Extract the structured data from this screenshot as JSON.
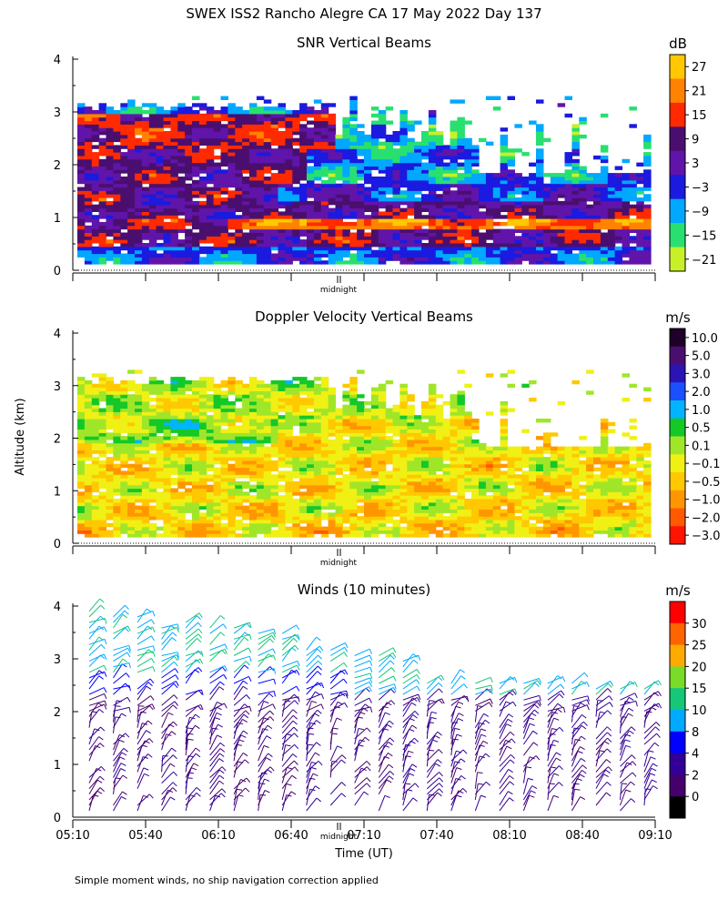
{
  "figure": {
    "title": "SWEX ISS2 Rancho Alegre CA  17 May 2022 Day 137",
    "ylabel": "Altitude (km)",
    "xlabel": "Time (UT)",
    "midnight_label": "midnight",
    "footnote": "Simple moment winds, no ship navigation correction applied"
  },
  "chart_data": [
    {
      "type": "heatmap",
      "title": "SNR Vertical Beams",
      "x": {
        "range": [
          "05:10",
          "09:10"
        ]
      },
      "ylim": [
        0,
        4
      ],
      "y_ticks": [
        "0",
        "1",
        "2",
        "3",
        "4"
      ],
      "colorbar": {
        "unit": "dB",
        "labels": [
          "27",
          "21",
          "15",
          "9",
          "3",
          "−3",
          "−9",
          "−15",
          "−21"
        ],
        "colors": [
          "#ffc800",
          "#ff8200",
          "#ff2a00",
          "#4a0f6e",
          "#6014aa",
          "#1a1ae0",
          "#00a8ff",
          "#28e070",
          "#c8f028"
        ]
      },
      "data_top_km": 3.2,
      "pattern": "banded strong SNR near 0.6-1.0 km and 2.5-3.0 km; high altitudes thinning after 07:10"
    },
    {
      "type": "heatmap",
      "title": "Doppler Velocity Vertical Beams",
      "x": {
        "range": [
          "05:10",
          "09:10"
        ]
      },
      "ylim": [
        0,
        4
      ],
      "y_ticks": [
        "0",
        "1",
        "2",
        "3",
        "4"
      ],
      "colorbar": {
        "unit": "m/s",
        "labels": [
          "10.0",
          "5.0",
          "3.0",
          "2.0",
          "1.0",
          "0.5",
          "0.1",
          "−0.1",
          "−0.5",
          "−1.0",
          "−2.0",
          "−3.0"
        ],
        "colors": [
          "#1e0028",
          "#4a0f6e",
          "#2a14b4",
          "#1a50ff",
          "#00b4ff",
          "#14c828",
          "#a0e628",
          "#f0f014",
          "#ffc800",
          "#ff9600",
          "#ff5a00",
          "#ff1400"
        ]
      },
      "pattern": "mostly weak velocities (-0.5 to 0.5 m/s); blue/green upward patches above 2 km before 06:40"
    },
    {
      "type": "scatter",
      "title": "Winds (10 minutes)",
      "subtype": "wind barbs",
      "x_ticks": [
        "05:10",
        "05:40",
        "06:10",
        "06:40",
        "07:10",
        "07:40",
        "08:10",
        "08:40",
        "09:10"
      ],
      "ylim": [
        0,
        4
      ],
      "y_ticks": [
        "0",
        "1",
        "2",
        "3",
        "4"
      ],
      "colorbar": {
        "unit": "m/s",
        "labels": [
          "30",
          "25",
          "20",
          "15",
          "10",
          "8",
          "4",
          "2",
          "0"
        ],
        "colors": [
          "#ff0000",
          "#ff6400",
          "#ffaa00",
          "#78dc28",
          "#14c878",
          "#00aaff",
          "#0000ff",
          "#320096",
          "#46006e",
          "#000000"
        ]
      },
      "n_profiles": 24,
      "pattern": "weak (2-8 m/s) winds below 2 km, stronger (10-20 m/s) near 3-4 km early, tops descending to ~2.5 km after 07:40"
    }
  ]
}
